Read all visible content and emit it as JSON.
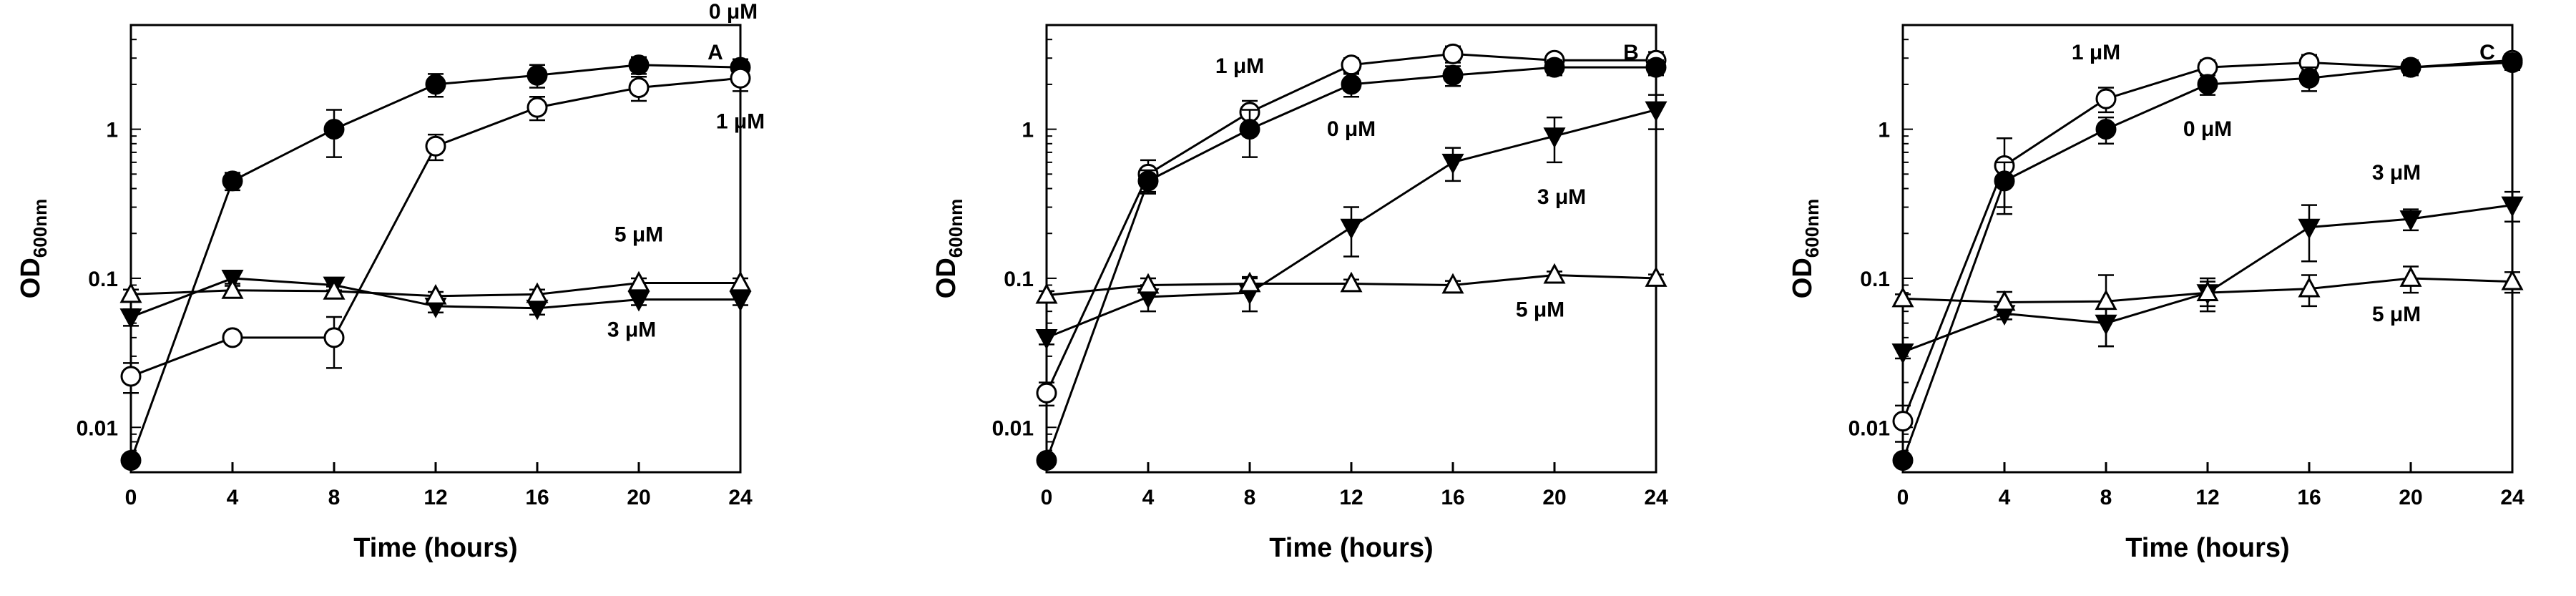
{
  "chart_data": [
    {
      "type": "line",
      "panel_label": "A",
      "xlabel": "Time (hours)",
      "ylabel": "OD",
      "ylabel_sub": "600nm",
      "yscale": "log",
      "xlim": [
        0,
        24
      ],
      "ylim": [
        0.005,
        5
      ],
      "x_ticks": [
        "0",
        "4",
        "8",
        "12",
        "16",
        "20",
        "24"
      ],
      "y_ticks": [
        "0.01",
        "0.1",
        "1"
      ],
      "x": [
        0,
        4,
        8,
        12,
        16,
        20,
        24
      ],
      "series": [
        {
          "name": "0 μM",
          "marker": "filled-circle",
          "values": [
            0.006,
            0.45,
            1.0,
            2.0,
            2.3,
            2.7,
            2.6
          ],
          "errors": [
            0.0005,
            0.06,
            0.35,
            0.35,
            0.4,
            0.35,
            0.35
          ]
        },
        {
          "name": "1 μM",
          "marker": "open-circle",
          "values": [
            0.022,
            0.04,
            0.04,
            0.77,
            1.4,
            1.9,
            2.2
          ],
          "errors": [
            0.005,
            0.0,
            0.015,
            0.15,
            0.25,
            0.35,
            0.4
          ]
        },
        {
          "name": "3 μM",
          "marker": "filled-triangle-down",
          "values": [
            0.055,
            0.1,
            0.09,
            0.065,
            0.063,
            0.072,
            0.072
          ],
          "errors": [
            0.007,
            0.008,
            0.007,
            0.006,
            0.006,
            0.006,
            0.006
          ]
        },
        {
          "name": "5 μM",
          "marker": "open-triangle-up",
          "values": [
            0.078,
            0.083,
            0.082,
            0.076,
            0.078,
            0.093,
            0.093
          ],
          "errors": [
            0.006,
            0.006,
            0.006,
            0.005,
            0.006,
            0.007,
            0.007
          ]
        }
      ],
      "annotations": [
        {
          "text": "0 μM",
          "series": "0 μM"
        },
        {
          "text": "1 μM",
          "series": "1 μM"
        },
        {
          "text": "5 μM",
          "series": "5 μM"
        },
        {
          "text": "3 μM",
          "series": "3 μM"
        }
      ]
    },
    {
      "type": "line",
      "panel_label": "B",
      "xlabel": "Time (hours)",
      "ylabel": "OD",
      "ylabel_sub": "600nm",
      "yscale": "log",
      "xlim": [
        0,
        24
      ],
      "ylim": [
        0.005,
        5
      ],
      "x_ticks": [
        "0",
        "4",
        "8",
        "12",
        "16",
        "20",
        "24"
      ],
      "y_ticks": [
        "0.01",
        "0.1",
        "1"
      ],
      "x": [
        0,
        4,
        8,
        12,
        16,
        20,
        24
      ],
      "series": [
        {
          "name": "1 μM",
          "marker": "open-circle",
          "values": [
            0.017,
            0.5,
            1.3,
            2.7,
            3.2,
            2.9,
            2.9
          ],
          "errors": [
            0.003,
            0.12,
            0.25,
            0.3,
            0.4,
            0.3,
            0.4
          ]
        },
        {
          "name": "0 μM",
          "marker": "filled-circle",
          "values": [
            0.006,
            0.45,
            1.0,
            2.0,
            2.3,
            2.6,
            2.6
          ],
          "errors": [
            0.0005,
            0.08,
            0.35,
            0.35,
            0.35,
            0.3,
            0.3
          ]
        },
        {
          "name": "3 μM",
          "marker": "filled-triangle-down",
          "values": [
            0.04,
            0.075,
            0.08,
            0.22,
            0.6,
            0.9,
            1.35
          ],
          "errors": [
            0.004,
            0.015,
            0.02,
            0.08,
            0.15,
            0.3,
            0.35
          ]
        },
        {
          "name": "5 μM",
          "marker": "open-triangle-up",
          "values": [
            0.077,
            0.09,
            0.092,
            0.092,
            0.09,
            0.105,
            0.1
          ],
          "errors": [
            0.005,
            0.01,
            0.01,
            0.006,
            0.006,
            0.006,
            0.006
          ]
        }
      ],
      "annotations": [
        {
          "text": "1 μM",
          "series": "1 μM"
        },
        {
          "text": "0 μM",
          "series": "0 μM"
        },
        {
          "text": "3 μM",
          "series": "3 μM"
        },
        {
          "text": "5 μM",
          "series": "5 μM"
        }
      ]
    },
    {
      "type": "line",
      "panel_label": "C",
      "xlabel": "Time (hours)",
      "ylabel": "OD",
      "ylabel_sub": "600nm",
      "yscale": "log",
      "xlim": [
        0,
        24
      ],
      "ylim": [
        0.005,
        5
      ],
      "x_ticks": [
        "0",
        "4",
        "8",
        "12",
        "16",
        "20",
        "24"
      ],
      "y_ticks": [
        "0.01",
        "0.1",
        "1"
      ],
      "x": [
        0,
        4,
        8,
        12,
        16,
        20,
        24
      ],
      "series": [
        {
          "name": "1 μM",
          "marker": "open-circle",
          "values": [
            0.011,
            0.57,
            1.6,
            2.6,
            2.8,
            2.6,
            2.9
          ],
          "errors": [
            0.003,
            0.3,
            0.3,
            0.3,
            0.35,
            0.3,
            0.3
          ]
        },
        {
          "name": "0 μM",
          "marker": "filled-circle",
          "values": [
            0.006,
            0.45,
            1.0,
            2.0,
            2.2,
            2.6,
            2.8
          ],
          "errors": [
            0.0005,
            0.15,
            0.2,
            0.3,
            0.4,
            0.3,
            0.3
          ]
        },
        {
          "name": "3 μM",
          "marker": "filled-triangle-down",
          "values": [
            0.032,
            0.058,
            0.05,
            0.08,
            0.22,
            0.25,
            0.31
          ],
          "errors": [
            0.003,
            0.005,
            0.015,
            0.015,
            0.09,
            0.04,
            0.07
          ]
        },
        {
          "name": "5 μM",
          "marker": "open-triangle-up",
          "values": [
            0.073,
            0.069,
            0.07,
            0.08,
            0.085,
            0.1,
            0.095
          ],
          "errors": [
            0.005,
            0.012,
            0.035,
            0.02,
            0.02,
            0.02,
            0.015
          ]
        }
      ],
      "annotations": [
        {
          "text": "1 μM",
          "series": "1 μM"
        },
        {
          "text": "0 μM",
          "series": "0 μM"
        },
        {
          "text": "3 μM",
          "series": "3 μM"
        },
        {
          "text": "5 μM",
          "series": "5 μM"
        }
      ]
    }
  ]
}
